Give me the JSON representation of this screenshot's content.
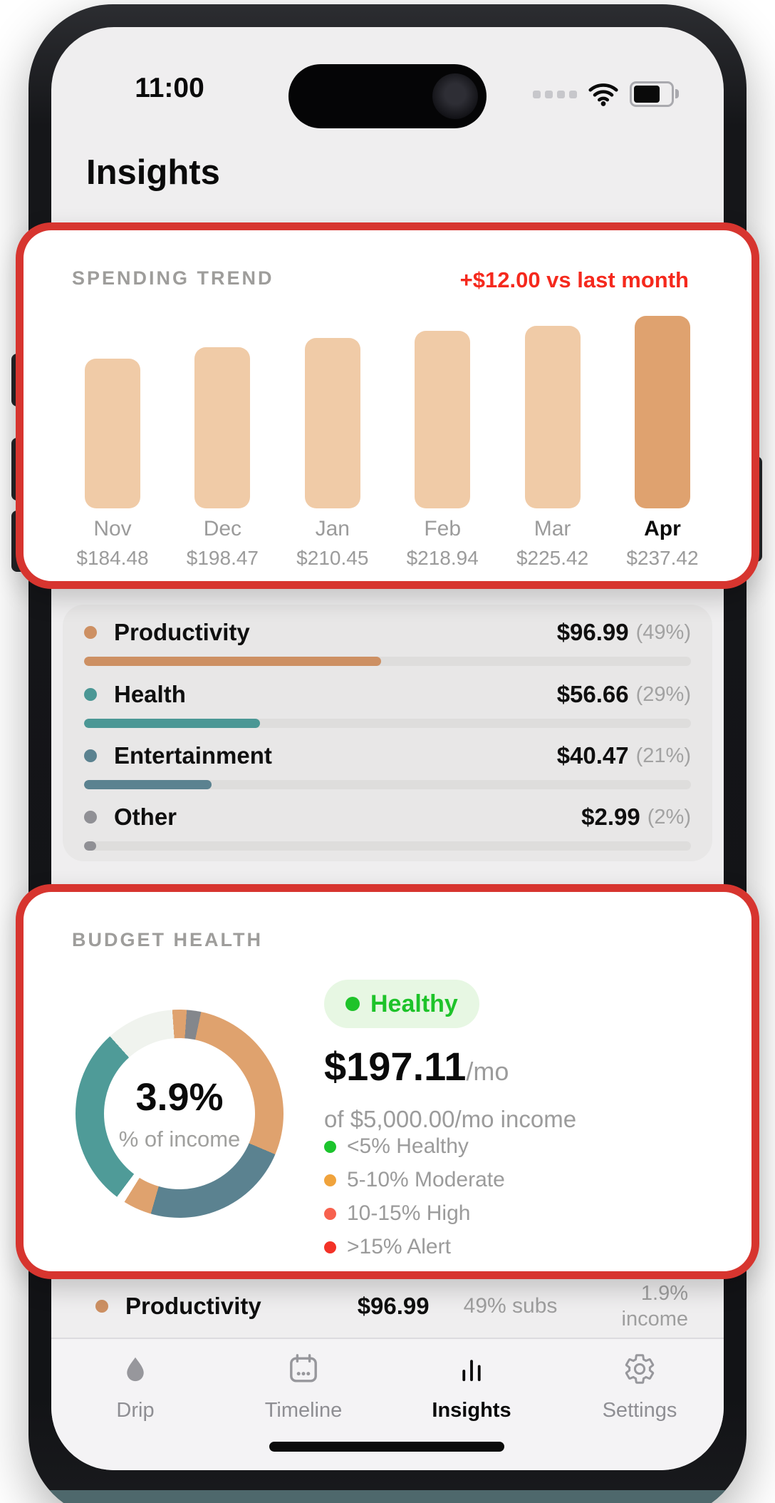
{
  "status_bar": {
    "time": "11:00",
    "icons": [
      "cellular-signal",
      "wifi",
      "battery"
    ]
  },
  "header": {
    "title": "Insights"
  },
  "spending_trend": {
    "label": "SPENDING TREND",
    "delta": "+$12.00 vs last month",
    "bars": [
      {
        "month": "Nov",
        "value": 184.48,
        "amount": "$184.48",
        "highlight": false
      },
      {
        "month": "Dec",
        "value": 198.47,
        "amount": "$198.47",
        "highlight": false
      },
      {
        "month": "Jan",
        "value": 210.45,
        "amount": "$210.45",
        "highlight": false
      },
      {
        "month": "Feb",
        "value": 218.94,
        "amount": "$218.94",
        "highlight": false
      },
      {
        "month": "Mar",
        "value": 225.42,
        "amount": "$225.42",
        "highlight": false
      },
      {
        "month": "Apr",
        "value": 237.42,
        "amount": "$237.42",
        "highlight": true
      }
    ]
  },
  "categories": {
    "rows": [
      {
        "name": "Productivity",
        "amount": "$96.99",
        "pct_label": "(49%)",
        "pct": 49,
        "color": "#cd9063"
      },
      {
        "name": "Health",
        "amount": "$56.66",
        "pct_label": "(29%)",
        "pct": 29,
        "color": "#4b9795"
      },
      {
        "name": "Entertainment",
        "amount": "$40.47",
        "pct_label": "(21%)",
        "pct": 21,
        "color": "#5b8290"
      },
      {
        "name": "Other",
        "amount": "$2.99",
        "pct_label": "(2%)",
        "pct": 2,
        "color": "#909095"
      }
    ]
  },
  "budget_health": {
    "label": "BUDGET HEALTH",
    "status": "Healthy",
    "monthly_amount": "$197.11",
    "per_suffix": "/mo",
    "income_line": "of $5,000.00/mo income",
    "donut": {
      "center_value": "3.9%",
      "center_label": "% of income",
      "segments": [
        {
          "color": "#dfa26e",
          "from": 0,
          "to": 4
        },
        {
          "color": "#84878c",
          "from": 4,
          "to": 12
        },
        {
          "color": "#dfa26e",
          "from": 12,
          "to": 113
        },
        {
          "color": "#5b8290",
          "from": 113,
          "to": 196
        },
        {
          "color": "#dfa26e",
          "from": 196,
          "to": 212
        },
        {
          "color": "#ffffff",
          "from": 212,
          "to": 217
        },
        {
          "color": "#4f9b98",
          "from": 217,
          "to": 318
        },
        {
          "color": "#f0f3ee",
          "from": 318,
          "to": 356
        },
        {
          "color": "#dfa26e",
          "from": 356,
          "to": 360
        }
      ]
    },
    "legend": [
      {
        "label": "<5% Healthy",
        "color": "#1cc42d"
      },
      {
        "label": "5-10% Moderate",
        "color": "#f0a33c"
      },
      {
        "label": "10-15% High",
        "color": "#f7614e"
      },
      {
        "label": ">15% Alert",
        "color": "#f33227"
      }
    ]
  },
  "detail_row": {
    "name": "Productivity",
    "amount": "$96.99",
    "subs_share": "49% subs",
    "income_line1": "1.9%",
    "income_line2": "income",
    "color": "#cd9063"
  },
  "tab_bar": {
    "tabs": [
      {
        "label": "Drip",
        "icon": "drop-icon",
        "active": false
      },
      {
        "label": "Timeline",
        "icon": "calendar-icon",
        "active": false
      },
      {
        "label": "Insights",
        "icon": "bar-chart-icon",
        "active": true
      },
      {
        "label": "Settings",
        "icon": "gear-icon",
        "active": false
      }
    ]
  },
  "colors": {
    "bar_normal": "#f0cba7",
    "bar_highlight": "#dfa26f",
    "annotation_red": "#d7352f",
    "delta_red": "#f5291d"
  }
}
